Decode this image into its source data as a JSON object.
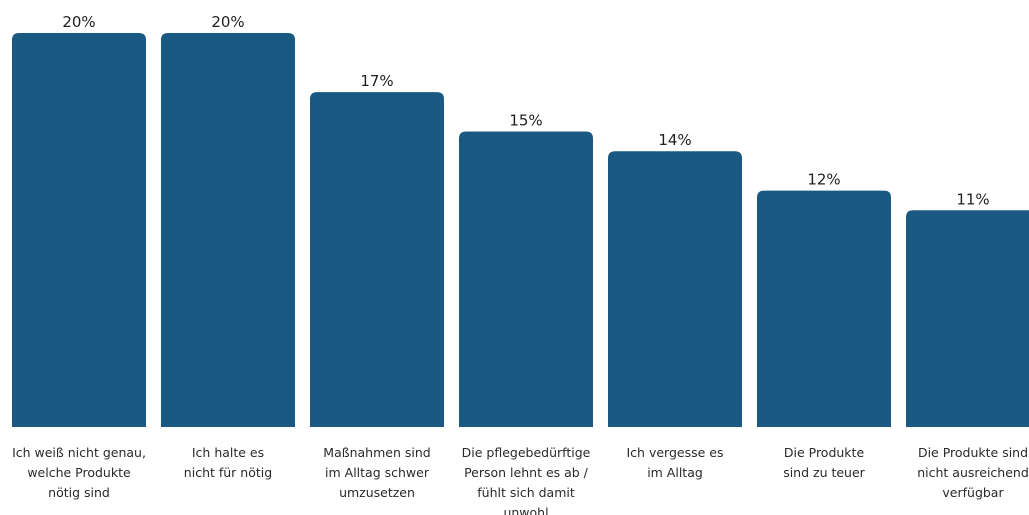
{
  "chart_data": {
    "type": "bar",
    "categories": [
      [
        "Ich weiß nicht genau,",
        "welche Produkte",
        "nötig sind"
      ],
      [
        "Ich halte es",
        "nicht für nötig"
      ],
      [
        "Maßnahmen sind",
        "im Alltag schwer",
        "umzusetzen"
      ],
      [
        "Die pflegebedürftige",
        "Person lehnt es ab /",
        "fühlt sich damit",
        "unwohl"
      ],
      [
        "Ich vergesse es",
        "im Alltag"
      ],
      [
        "Die Produkte",
        "sind zu teuer"
      ],
      [
        "Die Produkte sind",
        "nicht ausreichend",
        "verfügbar"
      ]
    ],
    "values": [
      20,
      20,
      17,
      15,
      14,
      12,
      11
    ],
    "value_labels": [
      "20%",
      "20%",
      "17%",
      "15%",
      "14%",
      "12%",
      "11%"
    ],
    "bar_color": "#1a5a82",
    "title": "",
    "xlabel": "",
    "ylabel": "",
    "ylim": [
      0,
      20
    ],
    "grid": false,
    "legend": "none"
  }
}
